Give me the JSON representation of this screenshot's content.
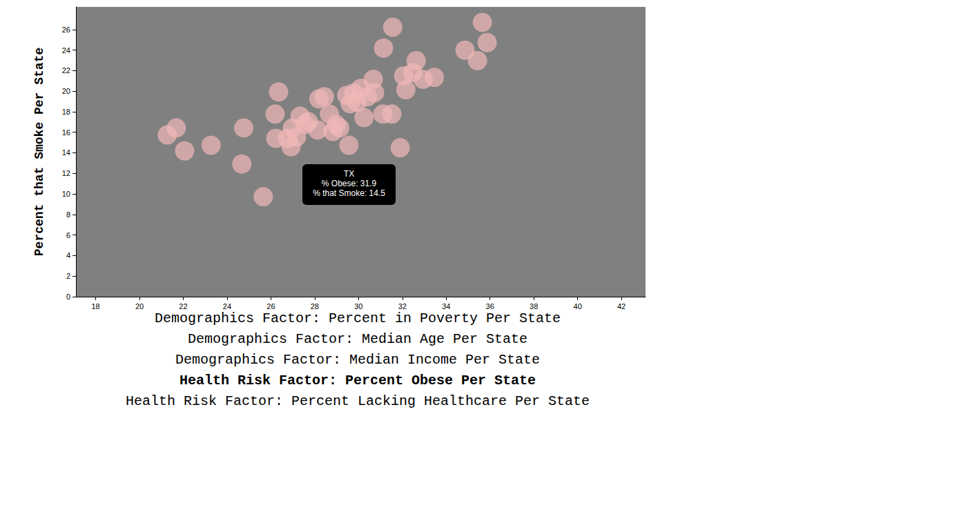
{
  "chart_data": {
    "type": "scatter",
    "ylabel": "Percent that Smoke Per State",
    "xlabel": "Health Risk Factor: Percent Obese Per State",
    "x_axis_options": [
      "Demographics Factor: Percent in Poverty Per State",
      "Demographics Factor: Median Age Per State",
      "Demographics Factor: Median Income Per State",
      "Health Risk Factor: Percent Obese Per State",
      "Health Risk Factor: Percent Lacking Healthcare Per State"
    ],
    "x": [
      21.27,
      21.68,
      22.06,
      23.27,
      24.67,
      24.76,
      25.65,
      26.35,
      26.19,
      26.22,
      26.98,
      26.92,
      27.33,
      27.17,
      27.71,
      28.19,
      28.44,
      28.13,
      28.83,
      29.14,
      29.56,
      29.46,
      29.94,
      30.1,
      30.41,
      30.25,
      30.73,
      30.67,
      31.11,
      31.14,
      31.56,
      32.06,
      32.16,
      32.63,
      32.95,
      33.46,
      31.9,
      34.86,
      35.43,
      35.65,
      35.87,
      29.78,
      29.62,
      28.98,
      28.67,
      27.56,
      26.76,
      32.48,
      31.52
    ],
    "values": [
      15.74,
      16.42,
      14.19,
      14.73,
      12.91,
      16.42,
      9.73,
      19.93,
      17.77,
      15.41,
      16.42,
      14.59,
      17.57,
      15.54,
      17.03,
      19.26,
      19.46,
      16.22,
      16.08,
      16.42,
      14.73,
      19.59,
      18.92,
      20.27,
      19.46,
      17.43,
      19.86,
      21.15,
      17.77,
      24.19,
      26.22,
      21.49,
      20.14,
      22.97,
      21.15,
      21.35,
      14.5,
      23.99,
      22.97,
      26.69,
      24.73,
      19.8,
      18.78,
      16.76,
      17.77,
      16.76,
      15.41,
      21.82,
      17.77
    ],
    "color": "#f2b8b8",
    "xlim": [
      17.1,
      43.1
    ],
    "xticks": [
      18,
      20,
      22,
      24,
      26,
      28,
      30,
      32,
      34,
      36,
      38,
      40,
      42
    ],
    "ylim": [
      0,
      28.2
    ],
    "yticks": [
      0,
      2,
      4,
      6,
      8,
      10,
      12,
      14,
      16,
      18,
      20,
      22,
      24,
      26
    ],
    "grid": false,
    "tooltip": [
      "TX",
      "% Obese: 31.9",
      "% that Smoke: 14.5"
    ]
  }
}
